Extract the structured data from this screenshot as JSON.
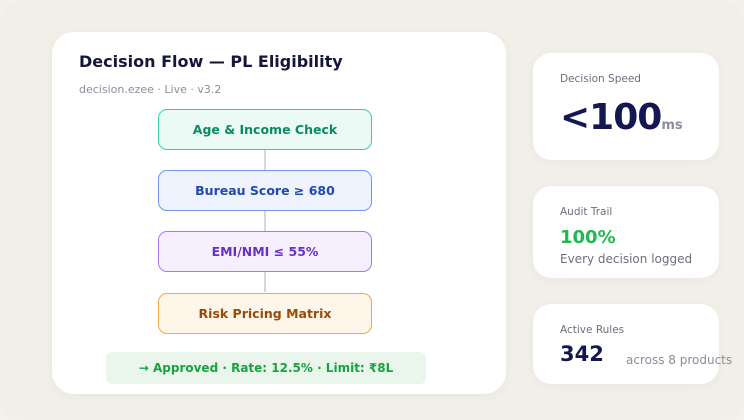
{
  "main": {
    "title": "Decision Flow — PL Eligibility",
    "subtitle": "decision.ezee · Live · v3.2",
    "steps": [
      {
        "label": "Age & Income Check"
      },
      {
        "label": "Bureau Score ≥ 680"
      },
      {
        "label": "EMI/NMI ≤ 55%"
      },
      {
        "label": "Risk Pricing Matrix"
      }
    ],
    "result": "→ Approved · Rate: 12.5% · Limit: ₹8L"
  },
  "stats": {
    "speed": {
      "label": "Decision Speed",
      "value": "<100",
      "unit": "ms"
    },
    "audit": {
      "label": "Audit Trail",
      "value": "100%",
      "note": "Every decision logged"
    },
    "rules": {
      "label": "Active Rules",
      "value": "342",
      "note": "across 8 products"
    }
  },
  "colors": {
    "background": "#f2efe9",
    "step_green": "#3ccf9e",
    "step_blue": "#6f95ee",
    "step_purple": "#a779ef",
    "step_orange": "#f0a948",
    "approved_green": "#17a341",
    "navy": "#141852"
  }
}
